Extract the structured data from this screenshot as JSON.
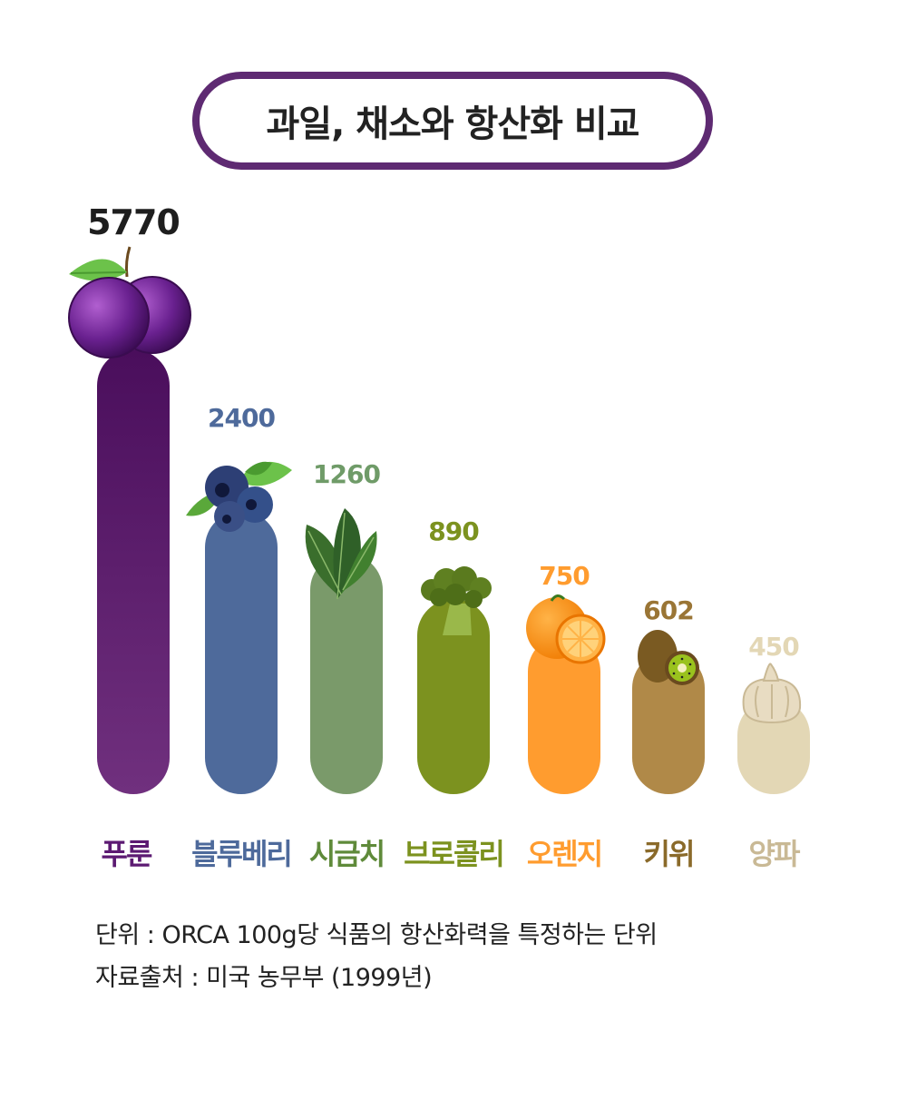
{
  "title": "과일, 채소와 항산화 비교",
  "chart_data": {
    "type": "bar",
    "categories": [
      "푸룬",
      "블루베리",
      "시금치",
      "브로콜리",
      "오렌지",
      "키위",
      "양파"
    ],
    "values": [
      5770,
      2400,
      1260,
      890,
      750,
      602,
      450
    ],
    "colors": [
      "#5a1a6a",
      "#4e6a9b",
      "#7a9a6a",
      "#7c921f",
      "#ff9c2f",
      "#b08948",
      "#e3d7b5"
    ],
    "label_colors": [
      "#1e1e1e",
      "#4e6a9b",
      "#6f9b68",
      "#7c921f",
      "#ff9c2f",
      "#9a7535",
      "#e3d7b5"
    ],
    "category_colors": [
      "#5c1a72",
      "#4e6a9b",
      "#5f8a3a",
      "#7c921f",
      "#ff9c2f",
      "#8a6a2a",
      "#c9b995"
    ],
    "icons": [
      "plum-icon",
      "blueberry-icon",
      "spinach-icon",
      "broccoli-icon",
      "orange-icon",
      "kiwi-icon",
      "garlic-icon"
    ],
    "title": "과일, 채소와 항산화 비교"
  },
  "notes": {
    "unit": "단위 : ORCA 100g당 식품의 항산화력을 특정하는 단위",
    "source": "자료출처 : 미국 농무부 (1999년)"
  }
}
